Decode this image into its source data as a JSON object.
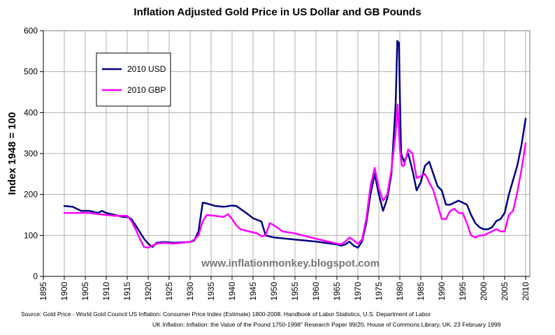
{
  "chart_data": {
    "type": "line",
    "title": "Inflation Adjusted Gold Price in US Dollar and GB Pounds",
    "xlabel": "",
    "ylabel": "Index 1948 = 100",
    "xlim": [
      1895,
      2011
    ],
    "ylim": [
      0,
      600
    ],
    "x_ticks": [
      "1895",
      "1900",
      "1905",
      "1910",
      "1915",
      "1920",
      "1925",
      "1930",
      "1935",
      "1940",
      "1945",
      "1950",
      "1955",
      "1960",
      "1965",
      "1970",
      "1975",
      "1980",
      "1985",
      "1990",
      "1995",
      "2000",
      "2005",
      "2010"
    ],
    "y_ticks": [
      "0",
      "100",
      "200",
      "300",
      "400",
      "500",
      "600"
    ],
    "grid": true,
    "legend_position": "top-left",
    "series": [
      {
        "name": "2010 USD",
        "color": "#000080",
        "x": [
          1900,
          1902,
          1904,
          1906,
          1908,
          1909,
          1910,
          1912,
          1914,
          1915,
          1916,
          1917,
          1918,
          1919,
          1920,
          1921,
          1922,
          1924,
          1926,
          1928,
          1930,
          1931,
          1932,
          1933,
          1934,
          1936,
          1938,
          1940,
          1941,
          1942,
          1944,
          1945,
          1946,
          1947,
          1948,
          1950,
          1955,
          1960,
          1965,
          1966,
          1967,
          1968,
          1969,
          1970,
          1971,
          1972,
          1973,
          1974,
          1975,
          1976,
          1977,
          1978,
          1979,
          1979.4,
          1979.8,
          1980,
          1980.3,
          1981,
          1982,
          1983,
          1984,
          1985,
          1986,
          1987,
          1988,
          1989,
          1990,
          1991,
          1992,
          1993,
          1994,
          1995,
          1996,
          1997,
          1998,
          1999,
          2000,
          2001,
          2002,
          2003,
          2004,
          2005,
          2006,
          2007,
          2008,
          2009,
          2010
        ],
        "values": [
          172,
          170,
          160,
          160,
          155,
          160,
          155,
          150,
          145,
          145,
          140,
          125,
          108,
          92,
          80,
          72,
          82,
          84,
          82,
          83,
          84,
          88,
          110,
          180,
          178,
          172,
          170,
          173,
          172,
          165,
          150,
          142,
          138,
          134,
          100,
          95,
          90,
          85,
          78,
          75,
          78,
          85,
          75,
          70,
          85,
          130,
          200,
          250,
          200,
          160,
          190,
          250,
          420,
          575,
          570,
          450,
          300,
          280,
          300,
          260,
          210,
          230,
          270,
          280,
          250,
          220,
          210,
          175,
          175,
          180,
          185,
          180,
          175,
          150,
          130,
          120,
          115,
          115,
          120,
          135,
          140,
          155,
          200,
          235,
          270,
          320,
          385
        ]
      },
      {
        "name": "2010 GBP",
        "color": "#ff00ff",
        "x": [
          1900,
          1902,
          1904,
          1906,
          1908,
          1910,
          1912,
          1914,
          1915,
          1916,
          1917,
          1918,
          1919,
          1920,
          1921,
          1922,
          1924,
          1926,
          1928,
          1930,
          1931,
          1932,
          1933,
          1934,
          1936,
          1938,
          1939,
          1940,
          1941,
          1942,
          1944,
          1946,
          1947,
          1948,
          1949,
          1950,
          1952,
          1955,
          1960,
          1965,
          1966,
          1967,
          1968,
          1969,
          1970,
          1971,
          1972,
          1973,
          1974,
          1975,
          1976,
          1977,
          1978,
          1979,
          1979.5,
          1980,
          1980.5,
          1981,
          1982,
          1983,
          1984,
          1985,
          1986,
          1987,
          1988,
          1989,
          1990,
          1991,
          1992,
          1993,
          1994,
          1995,
          1996,
          1997,
          1998,
          1999,
          2000,
          2001,
          2002,
          2003,
          2004,
          2005,
          2006,
          2007,
          2008,
          2009,
          2010
        ],
        "values": [
          155,
          155,
          155,
          155,
          152,
          150,
          148,
          148,
          148,
          135,
          115,
          92,
          72,
          70,
          75,
          80,
          82,
          80,
          82,
          84,
          90,
          100,
          135,
          150,
          148,
          145,
          152,
          140,
          125,
          115,
          110,
          105,
          98,
          100,
          130,
          125,
          110,
          105,
          92,
          80,
          78,
          85,
          95,
          88,
          80,
          90,
          140,
          220,
          265,
          215,
          185,
          200,
          260,
          350,
          420,
          310,
          270,
          270,
          310,
          300,
          240,
          245,
          250,
          230,
          210,
          175,
          140,
          140,
          160,
          165,
          155,
          155,
          130,
          100,
          95,
          100,
          100,
          105,
          110,
          115,
          110,
          110,
          150,
          160,
          205,
          260,
          325
        ]
      }
    ]
  },
  "watermark": "www.inflationmonkey.blogspot.com",
  "source": {
    "line1": "Source:   Gold Price  - World Gold Council   US Inflation:  Consumer Price Index (Estimate) 1800-2008. Handbook of Labor Statistics, U.S. Department of Labor",
    "line2": "UK Inflation:  Inflation: the Value of the Pound 1750-1998\" Research Paper 99/20, House of Commons Library, UK. 23 February 1999"
  }
}
